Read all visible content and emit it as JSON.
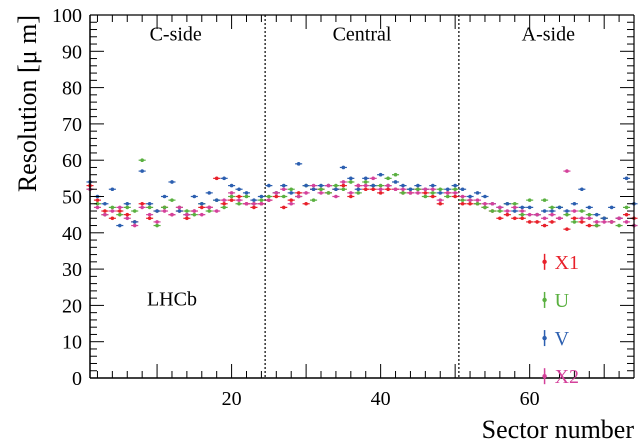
{
  "chart_data": {
    "type": "scatter",
    "title": "",
    "xlabel": "Sector number",
    "ylabel": "Resolution [μ m]",
    "xlim": [
      1,
      74
    ],
    "ylim": [
      0,
      100
    ],
    "x_ticks": [
      20,
      40,
      60
    ],
    "y_ticks": [
      0,
      10,
      20,
      30,
      40,
      50,
      60,
      70,
      80,
      90,
      100
    ],
    "grid": false,
    "legend_position": "bottom-right",
    "region_boundaries": [
      24.5,
      50.5
    ],
    "region_labels": [
      {
        "text": "C-side",
        "x": 12.5
      },
      {
        "text": "Central",
        "x": 37.5
      },
      {
        "text": "A-side",
        "x": 62.5
      }
    ],
    "annotations": [
      {
        "text": "LHCb",
        "x": 12,
        "y": 20
      }
    ],
    "series": [
      {
        "name": "X1",
        "color": "#e8202a",
        "x": [
          1,
          2,
          3,
          4,
          5,
          6,
          7,
          8,
          9,
          10,
          11,
          12,
          13,
          14,
          15,
          16,
          17,
          18,
          19,
          20,
          21,
          22,
          23,
          24,
          25,
          26,
          27,
          28,
          29,
          30,
          31,
          32,
          33,
          34,
          35,
          36,
          37,
          38,
          39,
          40,
          41,
          42,
          43,
          44,
          45,
          46,
          47,
          48,
          49,
          50,
          51,
          52,
          53,
          54,
          55,
          56,
          57,
          58,
          59,
          60,
          61,
          62,
          63,
          64,
          65,
          66,
          67,
          68,
          69,
          70,
          71,
          72,
          73,
          74
        ],
        "y": [
          53,
          49,
          46,
          44,
          46,
          45,
          43,
          48,
          44,
          46,
          47,
          45,
          46,
          44,
          46,
          47,
          47,
          55,
          48,
          49,
          50,
          48,
          47,
          48,
          49,
          50,
          47,
          49,
          51,
          48,
          52,
          52,
          51,
          52,
          53,
          50,
          53,
          52,
          52,
          51,
          52,
          52,
          51,
          51,
          52,
          51,
          50,
          48,
          51,
          50,
          48,
          48,
          48,
          47,
          46,
          44,
          45,
          44,
          44,
          43,
          43,
          42,
          43,
          44,
          41,
          44,
          43,
          42,
          42,
          44,
          43,
          44,
          45,
          44
        ]
      },
      {
        "name": "U",
        "color": "#5ab040",
        "x": [
          1,
          2,
          3,
          4,
          5,
          6,
          7,
          8,
          9,
          10,
          11,
          12,
          13,
          14,
          15,
          16,
          17,
          18,
          19,
          20,
          21,
          22,
          23,
          24,
          25,
          26,
          27,
          28,
          29,
          30,
          31,
          32,
          33,
          34,
          35,
          36,
          37,
          38,
          39,
          40,
          41,
          42,
          43,
          44,
          45,
          46,
          47,
          48,
          49,
          50,
          51,
          52,
          53,
          54,
          55,
          56,
          57,
          58,
          59,
          60,
          61,
          62,
          63,
          64,
          65,
          66,
          67,
          68,
          69,
          70,
          71,
          72,
          73,
          74
        ],
        "y": [
          52,
          48,
          45,
          47,
          45,
          47,
          46,
          60,
          47,
          42,
          47,
          49,
          47,
          46,
          45,
          48,
          46,
          49,
          47,
          50,
          48,
          50,
          48,
          49,
          50,
          51,
          50,
          52,
          50,
          53,
          49,
          52,
          51,
          53,
          52,
          54,
          51,
          54,
          53,
          53,
          55,
          56,
          51,
          52,
          52,
          50,
          51,
          52,
          50,
          52,
          49,
          49,
          48,
          47,
          46,
          46,
          48,
          48,
          45,
          49,
          45,
          49,
          47,
          47,
          45,
          43,
          46,
          45,
          42,
          44,
          43,
          42,
          47,
          42
        ]
      },
      {
        "name": "V",
        "color": "#2c5fb0",
        "x": [
          1,
          2,
          3,
          4,
          5,
          6,
          7,
          8,
          9,
          10,
          11,
          12,
          13,
          14,
          15,
          16,
          17,
          18,
          19,
          20,
          21,
          22,
          23,
          24,
          25,
          26,
          27,
          28,
          29,
          30,
          31,
          32,
          33,
          34,
          35,
          36,
          37,
          38,
          39,
          40,
          41,
          42,
          43,
          44,
          45,
          46,
          47,
          48,
          49,
          50,
          51,
          52,
          53,
          54,
          55,
          56,
          57,
          58,
          59,
          60,
          61,
          62,
          63,
          64,
          65,
          66,
          67,
          68,
          69,
          70,
          71,
          72,
          73,
          74
        ],
        "y": [
          54,
          50,
          48,
          52,
          42,
          48,
          43,
          57,
          48,
          46,
          50,
          54,
          46,
          45,
          50,
          48,
          51,
          49,
          55,
          53,
          52,
          51,
          49,
          50,
          53,
          51,
          53,
          51,
          59,
          53,
          52,
          53,
          53,
          52,
          58,
          55,
          52,
          55,
          53,
          56,
          53,
          54,
          53,
          52,
          53,
          52,
          53,
          51,
          52,
          53,
          52,
          50,
          51,
          50,
          48,
          47,
          48,
          46,
          47,
          47,
          45,
          46,
          46,
          47,
          46,
          48,
          52,
          47,
          45,
          44,
          47,
          44,
          55,
          48
        ]
      },
      {
        "name": "X2",
        "color": "#d4419b",
        "x": [
          1,
          2,
          3,
          4,
          5,
          6,
          7,
          8,
          9,
          10,
          11,
          12,
          13,
          14,
          15,
          16,
          17,
          18,
          19,
          20,
          21,
          22,
          23,
          24,
          25,
          26,
          27,
          28,
          29,
          30,
          31,
          32,
          33,
          34,
          35,
          36,
          37,
          38,
          39,
          40,
          41,
          42,
          43,
          44,
          45,
          46,
          47,
          48,
          49,
          50,
          51,
          52,
          53,
          54,
          55,
          56,
          57,
          58,
          59,
          60,
          61,
          62,
          63,
          64,
          65,
          66,
          67,
          68,
          69,
          70,
          71,
          72,
          73,
          74
        ],
        "y": [
          52,
          47,
          45,
          46,
          47,
          44,
          42,
          47,
          45,
          43,
          46,
          45,
          47,
          45,
          46,
          45,
          47,
          46,
          49,
          51,
          49,
          48,
          48,
          48,
          49,
          51,
          52,
          48,
          50,
          51,
          53,
          51,
          53,
          50,
          54,
          51,
          53,
          53,
          55,
          52,
          53,
          52,
          52,
          51,
          51,
          52,
          52,
          49,
          51,
          51,
          50,
          49,
          49,
          48,
          48,
          47,
          46,
          47,
          46,
          45,
          45,
          44,
          45,
          44,
          57,
          46,
          44,
          44,
          43,
          43,
          43,
          44,
          43,
          42
        ]
      }
    ]
  }
}
